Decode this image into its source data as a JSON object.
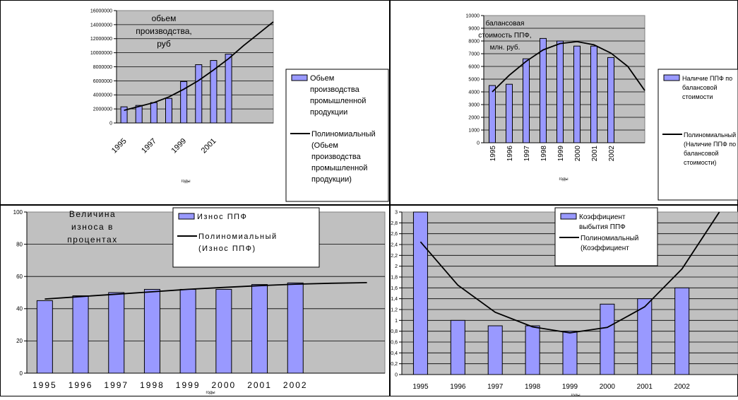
{
  "chart_data": [
    {
      "type": "bar",
      "title_lines": [
        "обьем",
        "производства,",
        "руб"
      ],
      "xlabel": "годы",
      "ylabel": "",
      "ylim": [
        0,
        16000000
      ],
      "y_ticks": [
        "0",
        "2000000",
        "4000000",
        "6000000",
        "8000000",
        "10000000",
        "12000000",
        "14000000",
        "16000000"
      ],
      "categories": [
        "1995",
        "1996",
        "1997",
        "1998",
        "1999",
        "2000",
        "2001",
        "2002"
      ],
      "x_tick_labels": [
        "1995",
        "",
        "1997",
        "",
        "1999",
        "",
        "2001",
        ""
      ],
      "series": [
        {
          "name": "Обьем производства промышленной продукции",
          "values": [
            2300000,
            2500000,
            2900000,
            3500000,
            5900000,
            8300000,
            8900000,
            9800000
          ],
          "color": "#9999ff"
        }
      ],
      "trendline": {
        "values": [
          1800000,
          2350000,
          2900000,
          3700000,
          4800000,
          6050000,
          7550000,
          9150000,
          11000000,
          12700000,
          14400000
        ]
      },
      "legend": [
        "Обьем",
        "производства",
        "промышленной",
        "продукции"
      ],
      "trend_legend": [
        "Полиномиальный",
        "(Обьем",
        "производства",
        "промышленной",
        "продукции)"
      ],
      "grid": true,
      "legend_position": "right"
    },
    {
      "type": "bar",
      "title_lines": [
        "балансовая",
        "стоимость ППФ,",
        "млн. руб."
      ],
      "xlabel": "годы",
      "ylim": [
        0,
        10000
      ],
      "y_ticks": [
        "0",
        "1000",
        "2000",
        "3000",
        "4000",
        "5000",
        "6000",
        "7000",
        "8000",
        "9000",
        "10000"
      ],
      "categories": [
        "1995",
        "1996",
        "1997",
        "1998",
        "1999",
        "2000",
        "2001",
        "2002"
      ],
      "series": [
        {
          "name": "Наличие ППФ по балансовой стоимости",
          "values": [
            4500,
            4600,
            6600,
            8200,
            8000,
            7600,
            7600,
            6700
          ],
          "color": "#9999ff"
        }
      ],
      "trendline": {
        "values": [
          4000,
          5300,
          6400,
          7300,
          7800,
          7950,
          7700,
          7050,
          6000,
          4100
        ]
      },
      "legend": [
        "Наличие ППФ по",
        "балансовой",
        "стоимости"
      ],
      "trend_legend": [
        "Полиномиальный",
        "(Наличие ППФ по",
        "балансовой",
        "стоимости)"
      ],
      "grid": true,
      "legend_position": "right"
    },
    {
      "type": "bar",
      "title_lines": [
        "Величина",
        "износа в",
        "процентах"
      ],
      "xlabel": "годы",
      "ylim": [
        0,
        100
      ],
      "y_ticks": [
        "0",
        "20",
        "40",
        "60",
        "80",
        "100"
      ],
      "categories": [
        "1995",
        "1996",
        "1997",
        "1998",
        "1999",
        "2000",
        "2001",
        "2002"
      ],
      "series": [
        {
          "name": "Износ ППФ",
          "values": [
            45,
            48,
            50,
            52,
            52,
            52,
            55,
            56
          ],
          "color": "#9999ff"
        }
      ],
      "trendline": {
        "values": [
          46,
          47.5,
          49,
          50.5,
          52,
          53.2,
          54.3,
          55.2,
          55.8,
          56.2
        ]
      },
      "legend": [
        "Износ ППФ"
      ],
      "trend_legend": [
        "Полиномиальный",
        "(Износ ППФ)"
      ],
      "grid": true,
      "legend_position": "top"
    },
    {
      "type": "bar",
      "xlabel": "годы",
      "ylim": [
        0,
        3
      ],
      "y_ticks": [
        "0",
        "0,2",
        "0,4",
        "0,6",
        "0,8",
        "1",
        "1,2",
        "1,4",
        "1,6",
        "1,8",
        "2",
        "2,2",
        "2,4",
        "2,6",
        "2,8",
        "3"
      ],
      "categories": [
        "1995",
        "1996",
        "1997",
        "1998",
        "1999",
        "2000",
        "2001",
        "2002"
      ],
      "series": [
        {
          "name": "Коэффициент выбытия ППФ",
          "values": [
            3.0,
            1.0,
            0.9,
            0.9,
            0.8,
            1.3,
            1.4,
            1.6
          ],
          "color": "#9999ff"
        }
      ],
      "trendline": {
        "values": [
          2.45,
          1.65,
          1.15,
          0.88,
          0.77,
          0.87,
          1.25,
          1.95,
          3.0
        ]
      },
      "legend": [
        "Коэффициент",
        "выбытия ППФ"
      ],
      "trend_legend": [
        "Полиномиальный",
        "(Коэффициент"
      ],
      "grid": true,
      "legend_position": "top-right"
    }
  ]
}
